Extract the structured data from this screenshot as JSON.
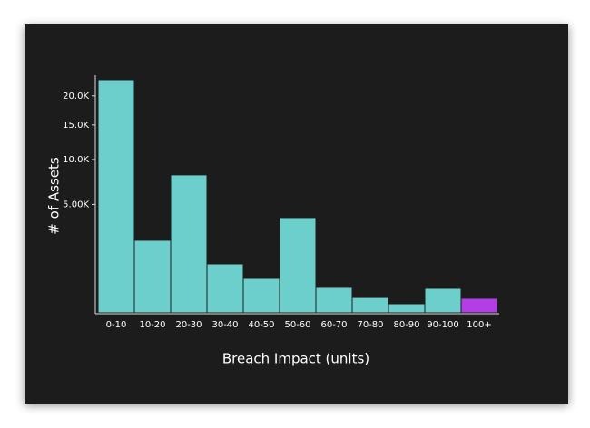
{
  "chart_data": {
    "type": "bar",
    "x_label": "Breach Impact (units)",
    "y_label": "# of Assets",
    "categories": [
      "0-10",
      "10-20",
      "20-30",
      "30-40",
      "40-50",
      "50-60",
      "60-70",
      "70-80",
      "80-90",
      "90-100",
      "100+"
    ],
    "values": [
      23100,
      2240,
      8090,
      1020,
      505,
      3860,
      275,
      100,
      35,
      255,
      90
    ],
    "colors": [
      "#6ccfcc",
      "#6ccfcc",
      "#6ccfcc",
      "#6ccfcc",
      "#6ccfcc",
      "#6ccfcc",
      "#6ccfcc",
      "#6ccfcc",
      "#6ccfcc",
      "#6ccfcc",
      "#b43ee6"
    ],
    "y_scale": "sqrt",
    "ylim": [
      0,
      24000
    ],
    "yticks": [
      {
        "value": 5000,
        "label": "5.00K"
      },
      {
        "value": 10000,
        "label": "10.0K"
      },
      {
        "value": 15000,
        "label": "15.0K"
      },
      {
        "value": 20000,
        "label": "20.0K"
      }
    ],
    "grid": false
  }
}
